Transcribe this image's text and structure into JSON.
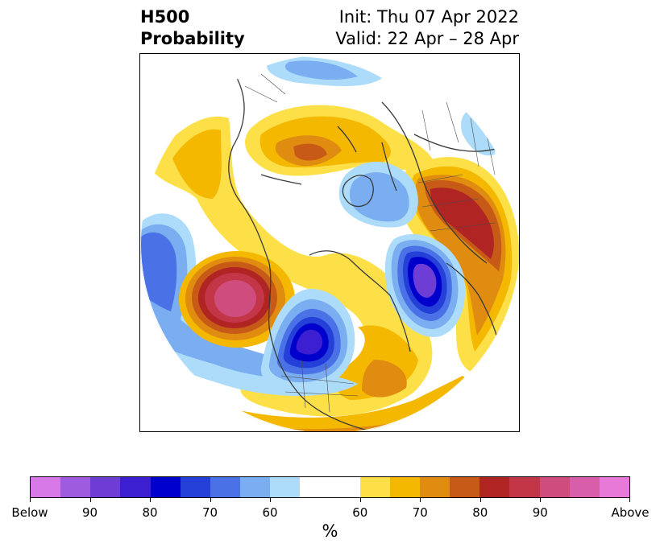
{
  "header": {
    "title_line1": "H500",
    "title_line2": "Probability",
    "init": "Init: Thu 07 Apr 2022",
    "valid": "Valid: 22 Apr – 28 Apr"
  },
  "map": {
    "projection": "north-polar-stereographic",
    "field": "500 hPa height probability (below/above normal)",
    "features": [
      {
        "name": "positive-anomaly-northeast-pacific",
        "category": "above",
        "peak_percent": 90
      },
      {
        "name": "negative-anomaly-central-north-america",
        "category": "below",
        "peak_percent": 90
      },
      {
        "name": "negative-anomaly-north-atlantic",
        "category": "below",
        "peak_percent": 90
      },
      {
        "name": "negative-anomaly-north-pacific",
        "category": "below",
        "peak_percent": 70
      },
      {
        "name": "positive-anomaly-western-russia",
        "category": "above",
        "peak_percent": 80
      },
      {
        "name": "positive-anomaly-siberia",
        "category": "above",
        "peak_percent": 75
      },
      {
        "name": "negative-anomaly-arctic-europe",
        "category": "below",
        "peak_percent": 65
      }
    ]
  },
  "colorbar": {
    "unit": "%",
    "segments": [
      {
        "color": "#d77ae8"
      },
      {
        "color": "#9f5be0"
      },
      {
        "color": "#6e3dd6"
      },
      {
        "color": "#3c1fd0"
      },
      {
        "color": "#0000cc"
      },
      {
        "color": "#2540d9"
      },
      {
        "color": "#4a72e6"
      },
      {
        "color": "#7aaef0"
      },
      {
        "color": "#acdcfa"
      },
      {
        "color": "#ffffff"
      },
      {
        "color": "#fde047"
      },
      {
        "color": "#f4b800"
      },
      {
        "color": "#e08c10"
      },
      {
        "color": "#c85a18"
      },
      {
        "color": "#b02424"
      },
      {
        "color": "#c23648"
      },
      {
        "color": "#cf4d7d"
      },
      {
        "color": "#d95ea9"
      },
      {
        "color": "#e77ad9"
      }
    ],
    "tick_labels": [
      "Below",
      "90",
      "80",
      "70",
      "60",
      "60",
      "70",
      "80",
      "90",
      "Above"
    ]
  }
}
